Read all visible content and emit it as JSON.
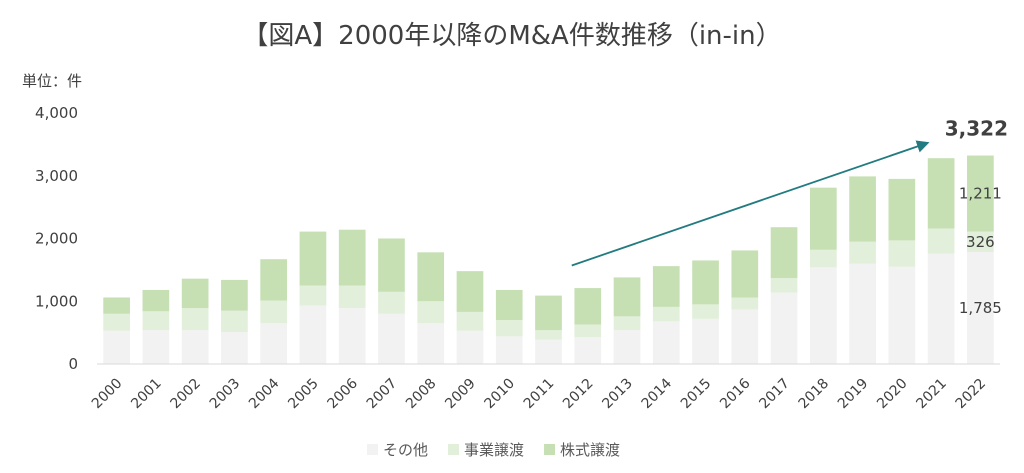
{
  "chart_data": {
    "type": "bar",
    "stacked": true,
    "title": "【図A】2000年以降のM&A件数推移（in-in）",
    "unit_label": "単位：件",
    "categories": [
      "2000",
      "2001",
      "2002",
      "2003",
      "2004",
      "2005",
      "2006",
      "2007",
      "2008",
      "2009",
      "2010",
      "2011",
      "2012",
      "2013",
      "2014",
      "2015",
      "2016",
      "2017",
      "2018",
      "2019",
      "2020",
      "2021",
      "2022"
    ],
    "series": [
      {
        "name": "その他",
        "color": "#f2f2f2",
        "values": [
          530,
          540,
          540,
          510,
          650,
          930,
          890,
          800,
          650,
          530,
          440,
          390,
          430,
          540,
          680,
          720,
          870,
          1140,
          1540,
          1600,
          1550,
          1760,
          1785
        ]
      },
      {
        "name": "事業譲渡",
        "color": "#e2efda",
        "values": [
          270,
          300,
          350,
          340,
          360,
          320,
          360,
          350,
          350,
          300,
          260,
          150,
          200,
          220,
          230,
          230,
          190,
          230,
          280,
          350,
          420,
          400,
          326
        ]
      },
      {
        "name": "株式譲渡",
        "color": "#c6e0b4",
        "values": [
          260,
          340,
          470,
          490,
          660,
          860,
          890,
          850,
          780,
          650,
          480,
          550,
          580,
          620,
          650,
          700,
          750,
          810,
          990,
          1040,
          980,
          1120,
          1211
        ]
      }
    ],
    "ylim": [
      0,
      4000
    ],
    "yticks": [
      0,
      1000,
      2000,
      3000,
      4000
    ],
    "ytick_labels": [
      "0",
      "1,000",
      "2,000",
      "3,000",
      "4,000"
    ],
    "grid": false,
    "legend_position": "bottom",
    "data_labels": [
      {
        "category": "2022",
        "series": "その他",
        "text": "1,785"
      },
      {
        "category": "2022",
        "series": "事業譲渡",
        "text": "326"
      },
      {
        "category": "2022",
        "series": "株式譲渡",
        "text": "1,211"
      }
    ],
    "total_label": {
      "category": "2022",
      "text": "3,322"
    },
    "trend_arrow": {
      "from_category": "2012",
      "to_category": "2021",
      "color": "#217b80"
    }
  }
}
